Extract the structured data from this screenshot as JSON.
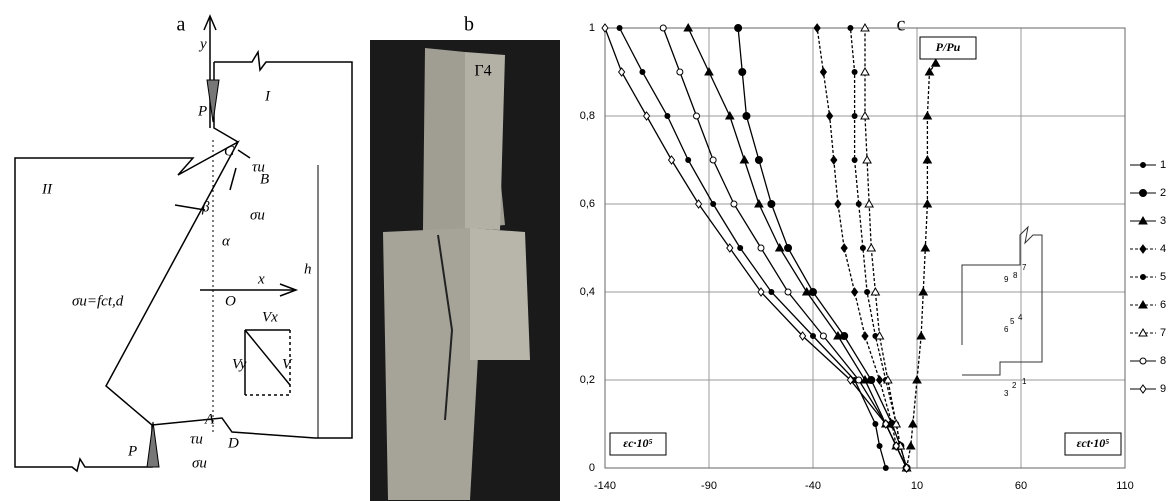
{
  "panels": {
    "a": "a",
    "b": "b",
    "c": "c"
  },
  "diagram_a": {
    "labels": [
      "y",
      "P",
      "I",
      "II",
      "C",
      "τu",
      "B",
      "β",
      "σu",
      "α",
      "x",
      "O",
      "σu=fct,d",
      "h",
      "Vx",
      "Vy",
      "V",
      "A",
      "D",
      "P",
      "τu",
      "σu"
    ]
  },
  "photo_b": {
    "marking": "Г4"
  },
  "chart_data": {
    "type": "line",
    "xlim": [
      -140,
      110
    ],
    "ylim": [
      0,
      1
    ],
    "xticks": [
      -140,
      -90,
      -40,
      10,
      60,
      110
    ],
    "yticks": [
      0,
      {
        "value": 0.2,
        "label": "0,2"
      },
      {
        "value": 0.4,
        "label": "0,4"
      },
      {
        "value": 0.6,
        "label": "0,6"
      },
      {
        "value": 0.8,
        "label": "0,8"
      },
      1
    ],
    "grid": true,
    "annotations": [
      "P/Pu",
      "εc·10⁵",
      "εct·10⁵"
    ],
    "inset_labels": [
      "7",
      "8",
      "9",
      "4",
      "5",
      "6",
      "1",
      "2",
      "3"
    ],
    "series": [
      {
        "name": "1",
        "color": "#000000",
        "marker": "dot",
        "dashed": false,
        "x": [
          -5,
          -8,
          -10,
          -20,
          -40,
          -60,
          -75,
          -88,
          -100,
          -110,
          -122,
          -133
        ],
        "y": [
          0,
          0.05,
          0.1,
          0.2,
          0.3,
          0.4,
          0.5,
          0.6,
          0.7,
          0.8,
          0.9,
          1
        ]
      },
      {
        "name": "2",
        "color": "#000000",
        "marker": "big-dot",
        "dashed": false,
        "x": [
          5,
          2,
          -2,
          -12,
          -25,
          -40,
          -52,
          -60,
          -66,
          -72,
          -74,
          -76
        ],
        "y": [
          0,
          0.05,
          0.1,
          0.2,
          0.3,
          0.4,
          0.5,
          0.6,
          0.7,
          0.8,
          0.9,
          1
        ]
      },
      {
        "name": "3",
        "color": "#000000",
        "marker": "triangle",
        "dashed": false,
        "x": [
          5,
          0,
          -5,
          -15,
          -28,
          -43,
          -56,
          -66,
          -73,
          -80,
          -90,
          -100
        ],
        "y": [
          0,
          0.05,
          0.1,
          0.2,
          0.3,
          0.4,
          0.5,
          0.6,
          0.7,
          0.8,
          0.9,
          1
        ]
      },
      {
        "name": "4",
        "color": "#000000",
        "marker": "diamond",
        "dashed": true,
        "x": [
          5,
          0,
          -2,
          -8,
          -15,
          -20,
          -25,
          -28,
          -30,
          -32,
          -35,
          -38
        ],
        "y": [
          0,
          0.05,
          0.1,
          0.2,
          0.3,
          0.4,
          0.5,
          0.6,
          0.7,
          0.8,
          0.9,
          1
        ]
      },
      {
        "name": "5",
        "color": "#000000",
        "marker": "dot",
        "dashed": true,
        "x": [
          5,
          2,
          0,
          -5,
          -10,
          -14,
          -16,
          -18,
          -20,
          -20,
          -20,
          -22
        ],
        "y": [
          0,
          0.05,
          0.1,
          0.2,
          0.3,
          0.4,
          0.5,
          0.6,
          0.7,
          0.8,
          0.9,
          1
        ]
      },
      {
        "name": "6",
        "color": "#000000",
        "marker": "triangle",
        "dashed": true,
        "x": [
          5,
          7,
          8,
          10,
          12,
          13,
          14,
          15,
          15,
          15,
          16,
          19
        ],
        "y": [
          0,
          0.05,
          0.1,
          0.2,
          0.3,
          0.4,
          0.5,
          0.6,
          0.7,
          0.8,
          0.9,
          0.92
        ]
      },
      {
        "name": "7",
        "color": "#000000",
        "marker": "open-triangle",
        "dashed": true,
        "x": [
          5,
          2,
          0,
          -4,
          -8,
          -10,
          -12,
          -13,
          -14,
          -15,
          -15,
          -15
        ],
        "y": [
          0,
          0.05,
          0.1,
          0.2,
          0.3,
          0.4,
          0.5,
          0.6,
          0.7,
          0.8,
          0.9,
          1
        ]
      },
      {
        "name": "8",
        "color": "#000000",
        "marker": "open-circle",
        "dashed": false,
        "x": [
          5,
          0,
          -5,
          -18,
          -35,
          -52,
          -65,
          -78,
          -88,
          -96,
          -104,
          -112
        ],
        "y": [
          0,
          0.05,
          0.1,
          0.2,
          0.3,
          0.4,
          0.5,
          0.6,
          0.7,
          0.8,
          0.9,
          1
        ]
      },
      {
        "name": "9",
        "color": "#000000",
        "marker": "open-diamond",
        "dashed": false,
        "x": [
          5,
          0,
          -5,
          -22,
          -45,
          -65,
          -80,
          -95,
          -108,
          -120,
          -132,
          -140
        ],
        "y": [
          0,
          0.05,
          0.1,
          0.2,
          0.3,
          0.4,
          0.5,
          0.6,
          0.7,
          0.8,
          0.9,
          1
        ]
      }
    ]
  }
}
